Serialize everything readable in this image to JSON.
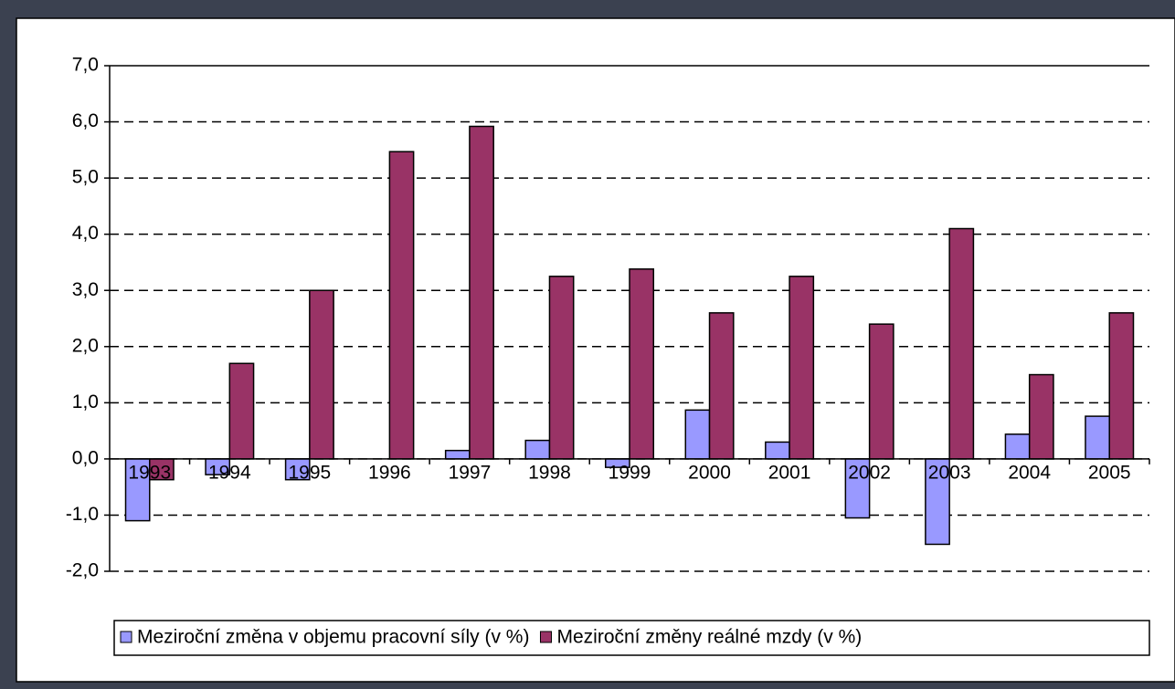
{
  "chart_data": {
    "type": "bar",
    "categories": [
      "1993",
      "1994",
      "1995",
      "1996",
      "1997",
      "1998",
      "1999",
      "2000",
      "2001",
      "2002",
      "2003",
      "2004",
      "2005"
    ],
    "series": [
      {
        "name": "Meziroční změna v objemu pracovní síly (v %)",
        "color": "#9999ff",
        "values": [
          -1.1,
          -0.28,
          -0.37,
          0,
          0.15,
          0.33,
          -0.15,
          0.87,
          0.3,
          -1.05,
          -1.52,
          0.44,
          0.76
        ]
      },
      {
        "name": "Meziroční změny reálné mzdy (v %)",
        "color": "#993366",
        "values": [
          -0.37,
          1.7,
          3.0,
          5.47,
          5.92,
          3.25,
          3.38,
          2.6,
          3.25,
          2.4,
          4.1,
          1.5,
          2.6
        ]
      }
    ],
    "ylim": [
      -2,
      7
    ],
    "yticks": [
      {
        "value": -2,
        "label": "-2,0"
      },
      {
        "value": -1,
        "label": "-1,0"
      },
      {
        "value": 0,
        "label": "0,0"
      },
      {
        "value": 1,
        "label": "1,0"
      },
      {
        "value": 2,
        "label": "2,0"
      },
      {
        "value": 3,
        "label": "3,0"
      },
      {
        "value": 4,
        "label": "4,0"
      },
      {
        "value": 5,
        "label": "5,0"
      },
      {
        "value": 6,
        "label": "6,0"
      },
      {
        "value": 7,
        "label": "7,0"
      }
    ],
    "grid": true,
    "legend": "bottom"
  }
}
